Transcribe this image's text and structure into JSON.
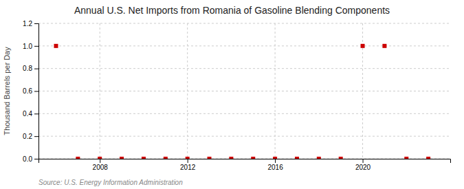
{
  "chart_data": {
    "type": "scatter",
    "title": "Annual U.S. Net Imports from Romania of Gasoline Blending Components",
    "ylabel": "Thousand Barrels per Day",
    "source": "Source: U.S. Energy Information Administration",
    "x": [
      2006,
      2007,
      2008,
      2009,
      2010,
      2011,
      2012,
      2013,
      2014,
      2015,
      2016,
      2017,
      2018,
      2019,
      2020,
      2021,
      2022,
      2023
    ],
    "values": [
      1.0,
      0.0,
      0.0,
      0.0,
      0.0,
      0.0,
      0.0,
      0.0,
      0.0,
      0.0,
      0.0,
      0.0,
      0.0,
      0.0,
      1.0,
      1.0,
      0.0,
      0.0
    ],
    "color": "#cc0000",
    "marker": "square",
    "xlim": [
      2005.2,
      2024.0
    ],
    "xticks": [
      2008,
      2012,
      2016,
      2020
    ],
    "ylim": [
      0.0,
      1.2
    ],
    "yticks": [
      {
        "value": 0.0,
        "label": "0.0"
      },
      0.2,
      0.4,
      0.6,
      0.8,
      {
        "value": 1.0,
        "label": "1.0"
      },
      1.2
    ],
    "grid": true
  }
}
